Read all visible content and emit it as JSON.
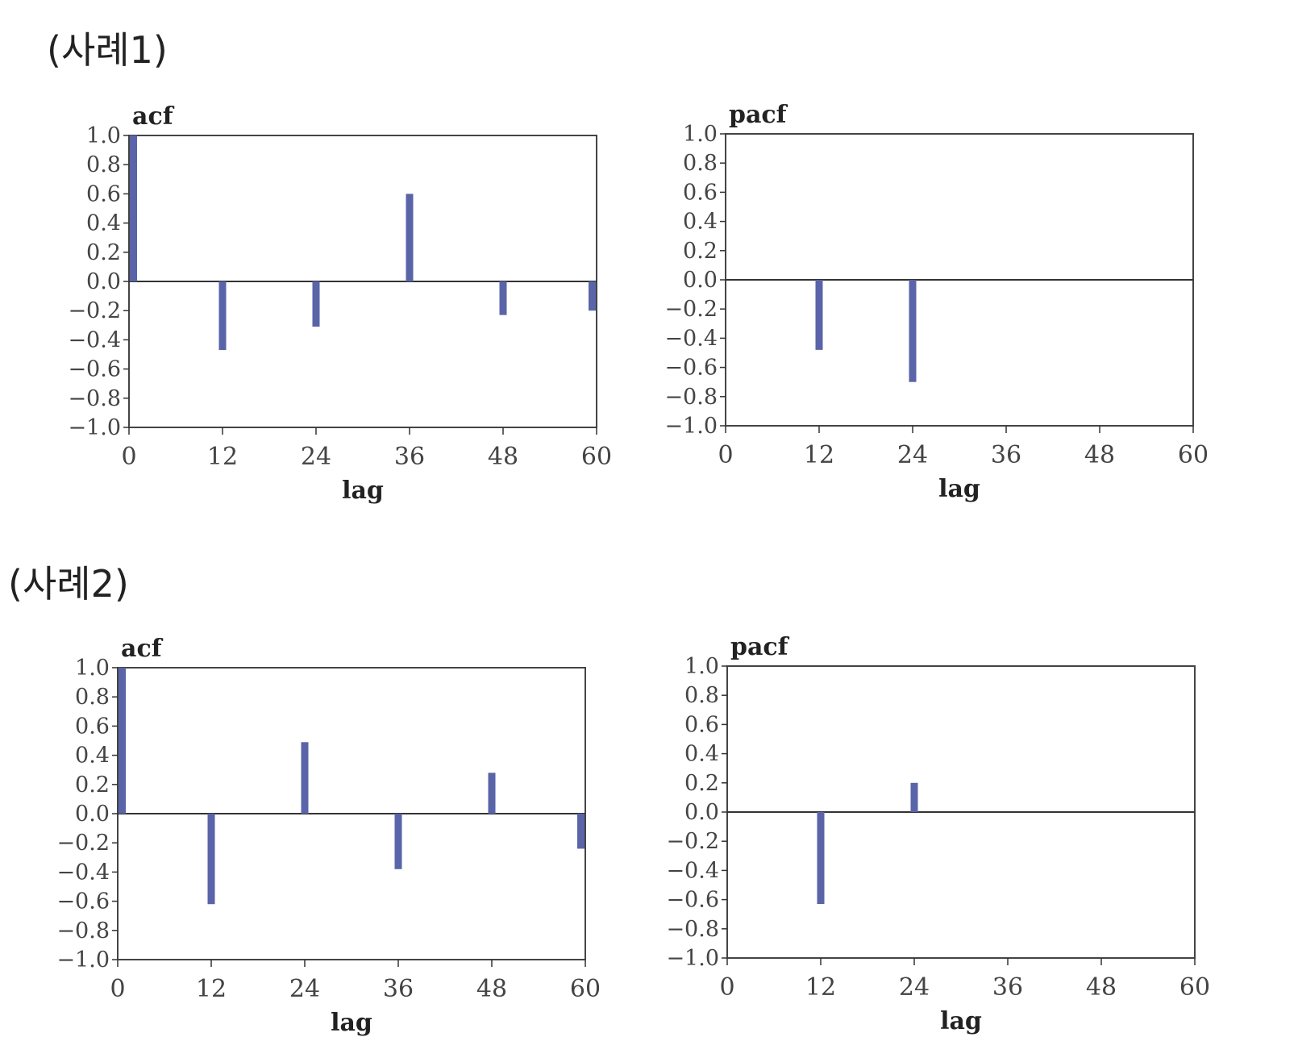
{
  "case_titles": [
    "(사례1)",
    "(사례2)"
  ],
  "chart_data": [
    {
      "id": "c1-acf",
      "type": "bar",
      "title": "acf",
      "xlabel": "lag",
      "ylabel": "",
      "ylim": [
        -1.0,
        1.0
      ],
      "xlim": [
        0,
        60
      ],
      "yticks": [
        "1.0",
        "0.8",
        "0.6",
        "0.4",
        "0.2",
        "0.0",
        "−0.2",
        "−0.4",
        "−0.6",
        "−0.8",
        "−1.0"
      ],
      "xticks": [
        "0",
        "12",
        "24",
        "36",
        "48",
        "60"
      ],
      "x": [
        0,
        12,
        24,
        36,
        48,
        60
      ],
      "values": [
        1.0,
        -0.47,
        -0.31,
        0.6,
        -0.23,
        -0.2
      ]
    },
    {
      "id": "c1-pacf",
      "type": "bar",
      "title": "pacf",
      "xlabel": "lag",
      "ylabel": "",
      "ylim": [
        -1.0,
        1.0
      ],
      "xlim": [
        0,
        60
      ],
      "yticks": [
        "1.0",
        "0.8",
        "0.6",
        "0.4",
        "0.2",
        "0.0",
        "−0.2",
        "−0.4",
        "−0.6",
        "−0.8",
        "−1.0"
      ],
      "xticks": [
        "0",
        "12",
        "24",
        "36",
        "48",
        "60"
      ],
      "x": [
        12,
        24
      ],
      "values": [
        -0.48,
        -0.7
      ]
    },
    {
      "id": "c2-acf",
      "type": "bar",
      "title": "acf",
      "xlabel": "lag",
      "ylabel": "",
      "ylim": [
        -1.0,
        1.0
      ],
      "xlim": [
        0,
        60
      ],
      "yticks": [
        "1.0",
        "0.8",
        "0.6",
        "0.4",
        "0.2",
        "0.0",
        "−0.2",
        "−0.4",
        "−0.6",
        "−0.8",
        "−1.0"
      ],
      "xticks": [
        "0",
        "12",
        "24",
        "36",
        "48",
        "60"
      ],
      "x": [
        0,
        12,
        24,
        36,
        48,
        60
      ],
      "values": [
        1.0,
        -0.62,
        0.49,
        -0.38,
        0.28,
        -0.24
      ]
    },
    {
      "id": "c2-pacf",
      "type": "bar",
      "title": "pacf",
      "xlabel": "lag",
      "ylabel": "",
      "ylim": [
        -1.0,
        1.0
      ],
      "xlim": [
        0,
        60
      ],
      "yticks": [
        "1.0",
        "0.8",
        "0.6",
        "0.4",
        "0.2",
        "0.0",
        "−0.2",
        "−0.4",
        "−0.6",
        "−0.8",
        "−1.0"
      ],
      "xticks": [
        "0",
        "12",
        "24",
        "36",
        "48",
        "60"
      ],
      "x": [
        12,
        24
      ],
      "values": [
        -0.63,
        0.2
      ]
    }
  ],
  "colors": {
    "bar": "#5a64a8",
    "axis": "#333333",
    "frame": "#444444"
  }
}
